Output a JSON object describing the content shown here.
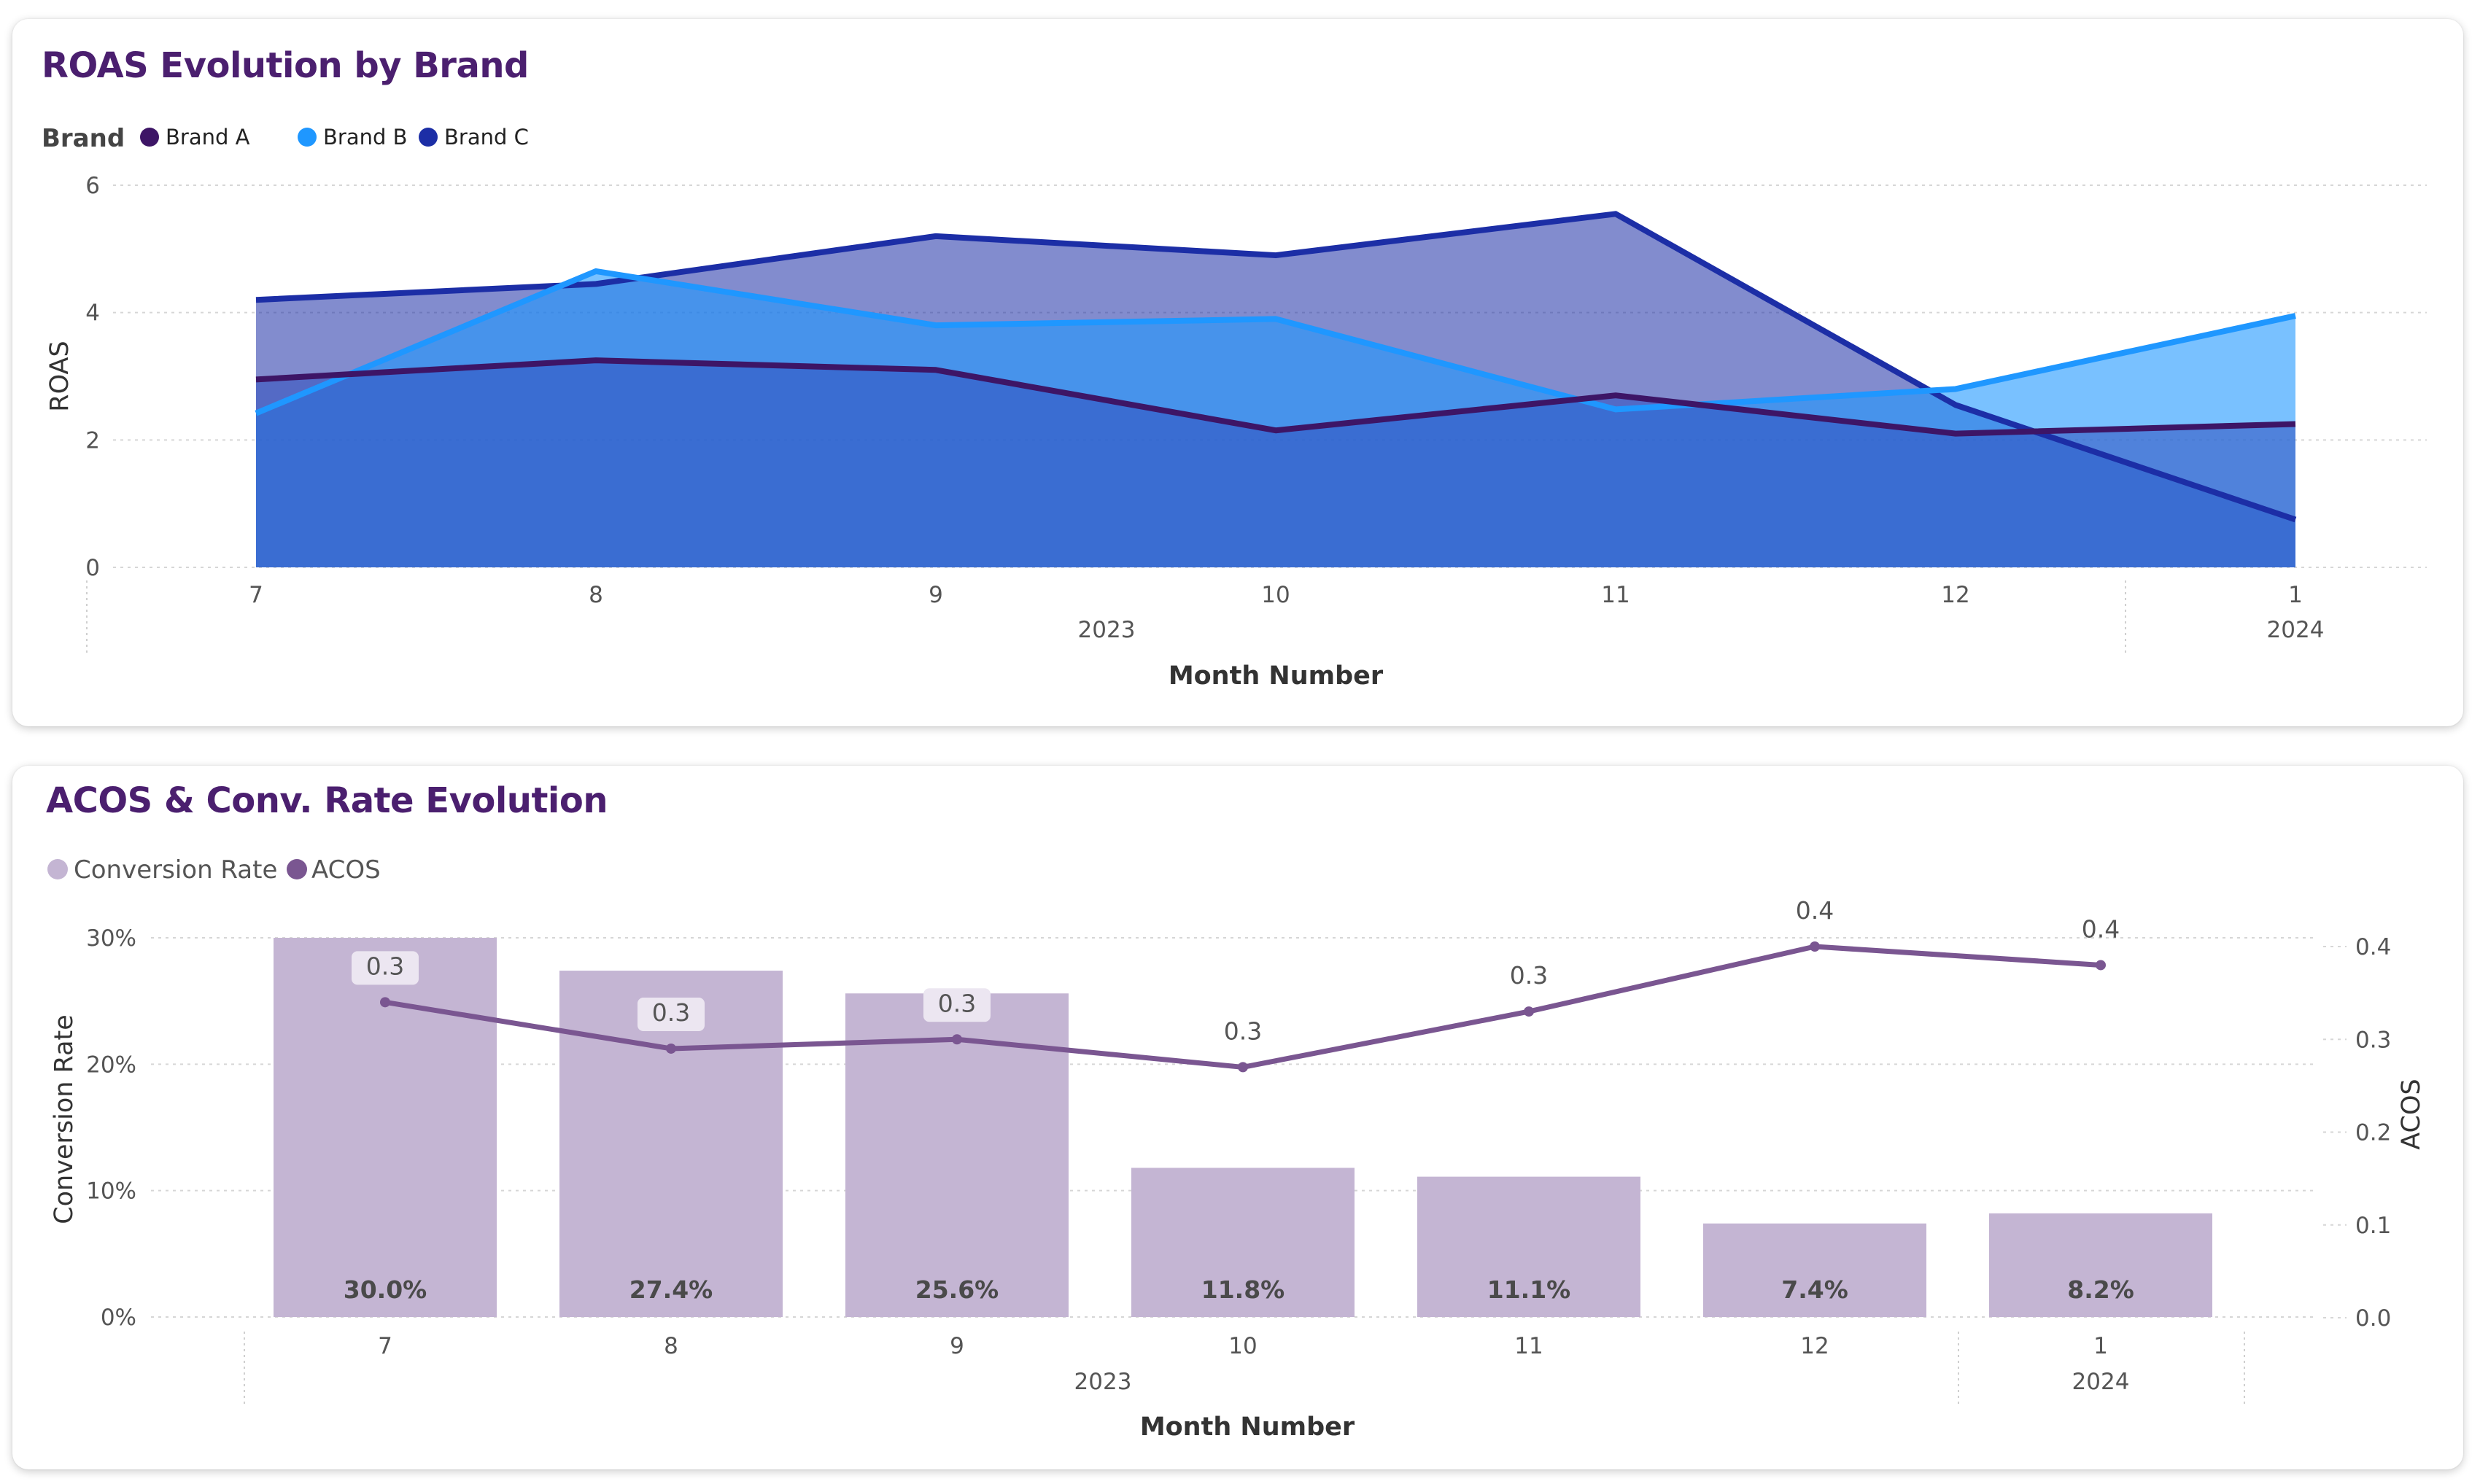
{
  "chart_data": [
    {
      "type": "area",
      "title": "ROAS Evolution by Brand",
      "xlabel": "Month Number",
      "ylabel": "ROAS",
      "ylim": [
        0,
        6
      ],
      "yticks": [
        "0",
        "2",
        "4",
        "6"
      ],
      "categories": [
        "7",
        "8",
        "9",
        "10",
        "11",
        "12",
        "1"
      ],
      "year_groups": [
        {
          "label": "2023",
          "span": [
            0,
            5
          ]
        },
        {
          "label": "2024",
          "span": [
            6,
            6
          ]
        }
      ],
      "legend_title": "Brand",
      "legend_position": "top-left",
      "grid": true,
      "series": [
        {
          "name": "Brand A",
          "color": "#3d1566",
          "values": [
            2.95,
            3.25,
            3.1,
            2.15,
            2.7,
            2.1,
            2.25
          ]
        },
        {
          "name": "Brand B",
          "color": "#1f97ff",
          "values": [
            2.42,
            4.65,
            3.8,
            3.9,
            2.48,
            2.8,
            3.95
          ]
        },
        {
          "name": "Brand C",
          "color": "#1c2ea6",
          "values": [
            4.2,
            4.45,
            5.2,
            4.9,
            5.55,
            2.55,
            0.75
          ]
        }
      ]
    },
    {
      "type": "bar",
      "title": "ACOS & Conv. Rate Evolution",
      "xlabel": "Month Number",
      "ylabel": "Conversion Rate",
      "ylabel_right": "ACOS",
      "ylim": [
        0,
        30
      ],
      "ylim_right": [
        0,
        0.4
      ],
      "yticks": [
        "0%",
        "10%",
        "20%",
        "30%"
      ],
      "yticks_right": [
        "0.0",
        "0.1",
        "0.2",
        "0.3",
        "0.4"
      ],
      "categories": [
        "7",
        "8",
        "9",
        "10",
        "11",
        "12",
        "1"
      ],
      "year_groups": [
        {
          "label": "2023",
          "span": [
            0,
            5
          ]
        },
        {
          "label": "2024",
          "span": [
            6,
            6
          ]
        }
      ],
      "legend_position": "top-left",
      "grid": true,
      "series": [
        {
          "name": "Conversion Rate",
          "kind": "bar",
          "axis": "left",
          "color": "#c4b5d3",
          "values": [
            30.0,
            27.4,
            25.6,
            11.8,
            11.1,
            7.4,
            8.2
          ],
          "labels": [
            "30.0%",
            "27.4%",
            "25.6%",
            "11.8%",
            "11.1%",
            "7.4%",
            "8.2%"
          ]
        },
        {
          "name": "ACOS",
          "kind": "line",
          "axis": "right",
          "color": "#7a5691",
          "values": [
            0.34,
            0.29,
            0.3,
            0.27,
            0.33,
            0.4,
            0.38
          ],
          "labels": [
            "0.3",
            "0.3",
            "0.3",
            "0.3",
            "0.3",
            "0.4",
            "0.4"
          ]
        }
      ]
    }
  ]
}
